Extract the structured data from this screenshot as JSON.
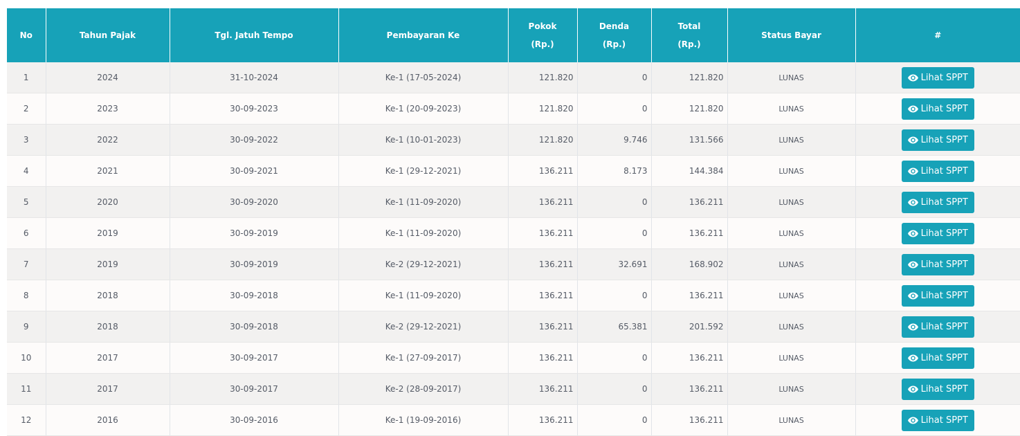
{
  "headers": {
    "no": "No",
    "tahun": "Tahun Pajak",
    "tgl": "Tgl. Jatuh Tempo",
    "pembayaran": "Pembayaran Ke",
    "pokok": "Pokok",
    "denda": "Denda",
    "total": "Total",
    "unit": "(Rp.)",
    "status": "Status Bayar",
    "aksi": "#"
  },
  "button_label": "Lihat SPPT",
  "button_icon": "eye-icon",
  "accent_color": "#17a2b8",
  "rows": [
    {
      "no": "1",
      "tahun": "2024",
      "tgl": "31-10-2024",
      "pembayaran": "Ke-1 (17-05-2024)",
      "pokok": "121.820",
      "denda": "0",
      "total": "121.820",
      "status": "LUNAS"
    },
    {
      "no": "2",
      "tahun": "2023",
      "tgl": "30-09-2023",
      "pembayaran": "Ke-1 (20-09-2023)",
      "pokok": "121.820",
      "denda": "0",
      "total": "121.820",
      "status": "LUNAS"
    },
    {
      "no": "3",
      "tahun": "2022",
      "tgl": "30-09-2022",
      "pembayaran": "Ke-1 (10-01-2023)",
      "pokok": "121.820",
      "denda": "9.746",
      "total": "131.566",
      "status": "LUNAS"
    },
    {
      "no": "4",
      "tahun": "2021",
      "tgl": "30-09-2021",
      "pembayaran": "Ke-1 (29-12-2021)",
      "pokok": "136.211",
      "denda": "8.173",
      "total": "144.384",
      "status": "LUNAS"
    },
    {
      "no": "5",
      "tahun": "2020",
      "tgl": "30-09-2020",
      "pembayaran": "Ke-1 (11-09-2020)",
      "pokok": "136.211",
      "denda": "0",
      "total": "136.211",
      "status": "LUNAS"
    },
    {
      "no": "6",
      "tahun": "2019",
      "tgl": "30-09-2019",
      "pembayaran": "Ke-1 (11-09-2020)",
      "pokok": "136.211",
      "denda": "0",
      "total": "136.211",
      "status": "LUNAS"
    },
    {
      "no": "7",
      "tahun": "2019",
      "tgl": "30-09-2019",
      "pembayaran": "Ke-2 (29-12-2021)",
      "pokok": "136.211",
      "denda": "32.691",
      "total": "168.902",
      "status": "LUNAS"
    },
    {
      "no": "8",
      "tahun": "2018",
      "tgl": "30-09-2018",
      "pembayaran": "Ke-1 (11-09-2020)",
      "pokok": "136.211",
      "denda": "0",
      "total": "136.211",
      "status": "LUNAS"
    },
    {
      "no": "9",
      "tahun": "2018",
      "tgl": "30-09-2018",
      "pembayaran": "Ke-2 (29-12-2021)",
      "pokok": "136.211",
      "denda": "65.381",
      "total": "201.592",
      "status": "LUNAS"
    },
    {
      "no": "10",
      "tahun": "2017",
      "tgl": "30-09-2017",
      "pembayaran": "Ke-1 (27-09-2017)",
      "pokok": "136.211",
      "denda": "0",
      "total": "136.211",
      "status": "LUNAS"
    },
    {
      "no": "11",
      "tahun": "2017",
      "tgl": "30-09-2017",
      "pembayaran": "Ke-2 (28-09-2017)",
      "pokok": "136.211",
      "denda": "0",
      "total": "136.211",
      "status": "LUNAS"
    },
    {
      "no": "12",
      "tahun": "2016",
      "tgl": "30-09-2016",
      "pembayaran": "Ke-1 (19-09-2016)",
      "pokok": "136.211",
      "denda": "0",
      "total": "136.211",
      "status": "LUNAS"
    }
  ]
}
